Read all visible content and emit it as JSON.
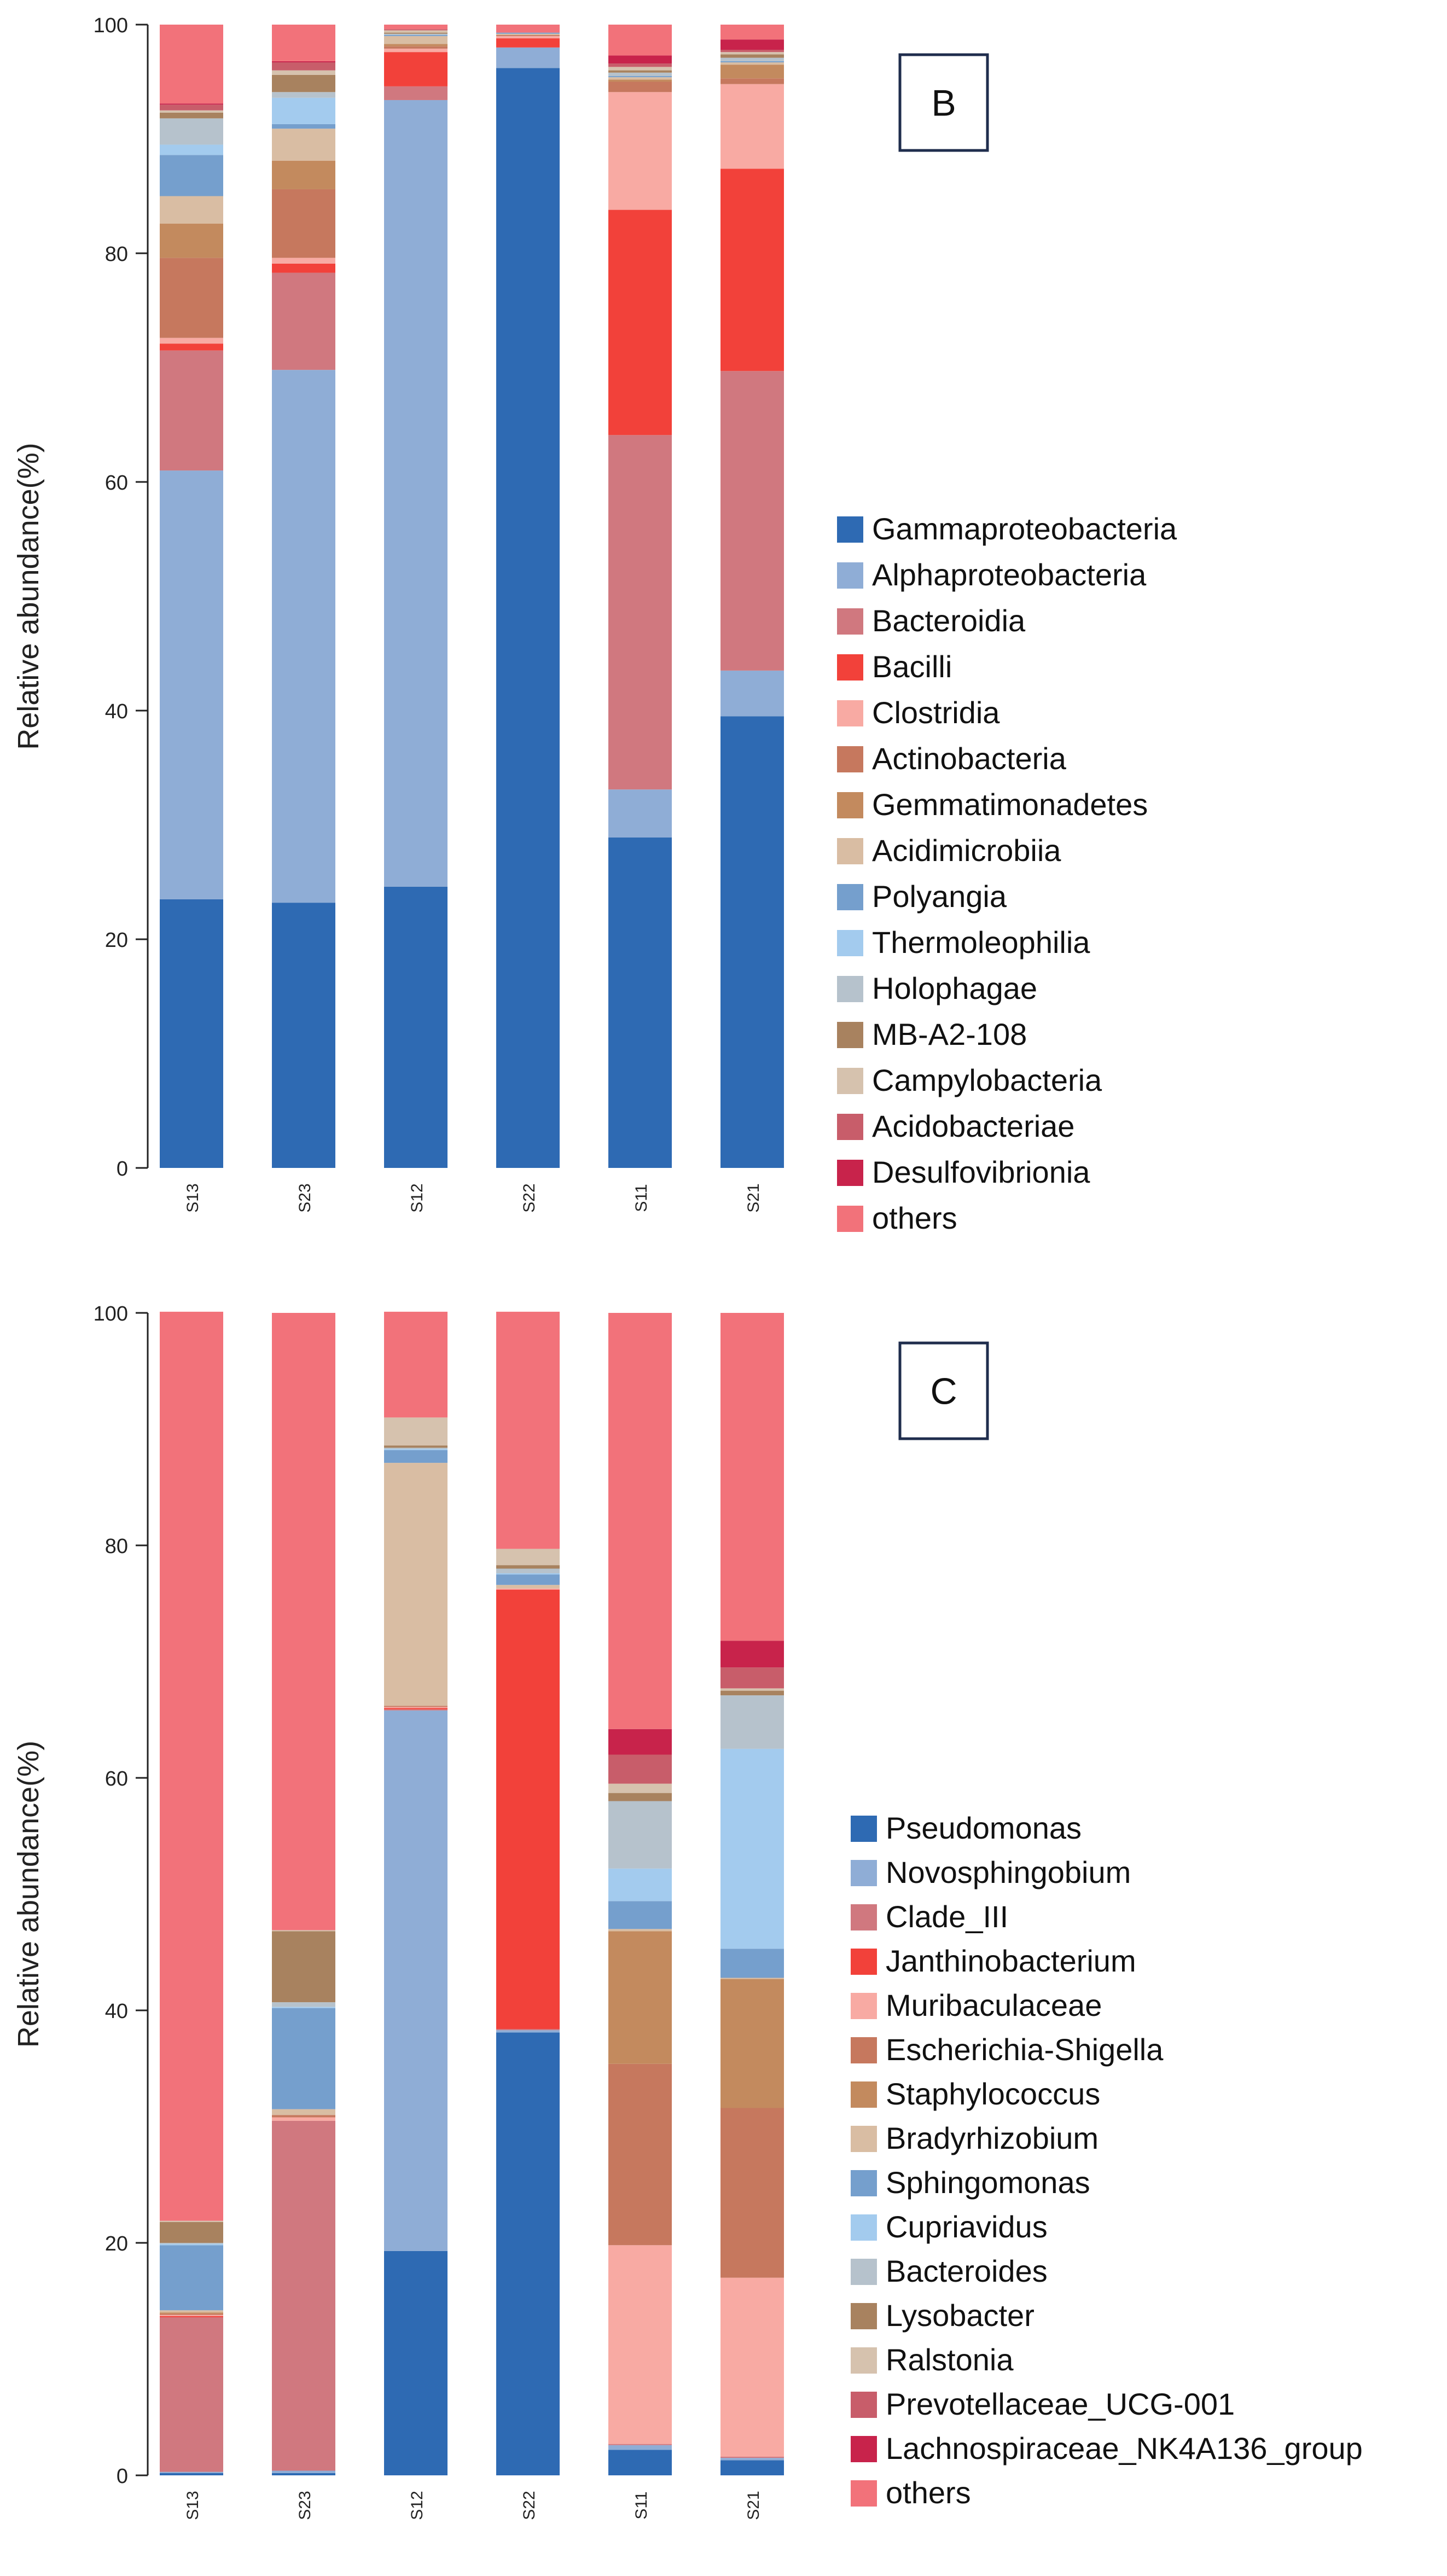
{
  "chart_data": [
    {
      "type": "bar",
      "stacked": true,
      "panel_label": "B",
      "ylabel": "Relative abundance(%)",
      "xlabel": "",
      "ylim": [
        0,
        100
      ],
      "yticks": [
        0,
        20,
        40,
        60,
        80,
        100
      ],
      "categories": [
        "S13",
        "S23",
        "S12",
        "S22",
        "S11",
        "S21"
      ],
      "legend_position": "right",
      "series": [
        {
          "name": "Gammaproteobacteria",
          "color": "#2E6AB3",
          "values": [
            23.5,
            23.2,
            24.6,
            96.2,
            28.9,
            39.5
          ]
        },
        {
          "name": "Alphaproteobacteria",
          "color": "#8FADD6",
          "values": [
            37.5,
            46.6,
            68.8,
            1.8,
            4.2,
            4.0
          ]
        },
        {
          "name": "Bacteroidia",
          "color": "#D0787F",
          "values": [
            10.5,
            8.5,
            1.2,
            0.0,
            31.0,
            26.2
          ]
        },
        {
          "name": "Bacilli",
          "color": "#F2413A",
          "values": [
            0.6,
            0.8,
            3.0,
            0.8,
            19.7,
            17.7
          ]
        },
        {
          "name": "Clostridia",
          "color": "#F8AAA3",
          "values": [
            0.5,
            0.5,
            0.3,
            0.2,
            10.3,
            7.4
          ]
        },
        {
          "name": "Actinobacteria",
          "color": "#C6785E",
          "values": [
            7.0,
            6.0,
            0.2,
            0.1,
            0.9,
            0.5
          ]
        },
        {
          "name": "Gemmatimonadetes",
          "color": "#C38A5E",
          "values": [
            3.0,
            2.5,
            0.2,
            0.0,
            0.2,
            1.2
          ]
        },
        {
          "name": "Acidimicrobiia",
          "color": "#D9BDA3",
          "values": [
            2.4,
            2.8,
            0.7,
            0.1,
            0.2,
            0.2
          ]
        },
        {
          "name": "Polyangia",
          "color": "#759FCD",
          "values": [
            3.6,
            0.4,
            0.1,
            0.1,
            0.1,
            0.1
          ]
        },
        {
          "name": "Thermoleophilia",
          "color": "#A3CBEE",
          "values": [
            0.9,
            2.3,
            0.0,
            0.0,
            0.0,
            0.0
          ]
        },
        {
          "name": "Holophagae",
          "color": "#B6C2CC",
          "values": [
            2.3,
            0.5,
            0.1,
            0.0,
            0.3,
            0.3
          ]
        },
        {
          "name": "MB-A2-108",
          "color": "#A8825F",
          "values": [
            0.5,
            1.5,
            0.1,
            0.0,
            0.2,
            0.3
          ]
        },
        {
          "name": "Campylobacteria",
          "color": "#D6C2AE",
          "values": [
            0.2,
            0.4,
            0.2,
            0.0,
            0.3,
            0.2
          ]
        },
        {
          "name": "Acidobacteriae",
          "color": "#C85D6A",
          "values": [
            0.5,
            0.7,
            0.1,
            0.0,
            0.3,
            0.2
          ]
        },
        {
          "name": "Desulfovibrionia",
          "color": "#C8234B",
          "values": [
            0.1,
            0.1,
            0.0,
            0.0,
            0.7,
            0.9
          ]
        },
        {
          "name": "others",
          "color": "#F2727A",
          "values": [
            6.9,
            3.2,
            0.4,
            0.7,
            2.7,
            1.3
          ]
        }
      ]
    },
    {
      "type": "bar",
      "stacked": true,
      "panel_label": "C",
      "ylabel": "Relative abundance(%)",
      "xlabel": "",
      "ylim": [
        0,
        100
      ],
      "yticks": [
        0,
        20,
        40,
        60,
        80,
        100
      ],
      "categories": [
        "S13",
        "S23",
        "S12",
        "S22",
        "S11",
        "S21"
      ],
      "legend_position": "right",
      "series": [
        {
          "name": "Pseudomonas",
          "color": "#2E6AB3",
          "values": [
            0.2,
            0.2,
            19.3,
            38.1,
            2.2,
            1.3
          ]
        },
        {
          "name": "Novosphingobium",
          "color": "#8FADD6",
          "values": [
            0.1,
            0.2,
            46.5,
            0.2,
            0.4,
            0.2
          ]
        },
        {
          "name": "Clade_III",
          "color": "#D0787F",
          "values": [
            13.3,
            30.1,
            0.1,
            0.1,
            0.1,
            0.1
          ]
        },
        {
          "name": "Janthinobacterium",
          "color": "#F2413A",
          "values": [
            0.1,
            0.0,
            0.1,
            37.8,
            0.0,
            0.0
          ]
        },
        {
          "name": "Muribaculaceae",
          "color": "#F8AAA3",
          "values": [
            0.1,
            0.3,
            0.1,
            0.1,
            17.1,
            15.4
          ]
        },
        {
          "name": "Escherichia-Shigella",
          "color": "#C6785E",
          "values": [
            0.1,
            0.2,
            0.1,
            0.0,
            15.6,
            14.6
          ]
        },
        {
          "name": "Staphylococcus",
          "color": "#C38A5E",
          "values": [
            0.1,
            0.0,
            0.0,
            0.0,
            11.4,
            11.1
          ]
        },
        {
          "name": "Bradyrhizobium",
          "color": "#D9BDA3",
          "values": [
            0.2,
            0.5,
            20.9,
            0.3,
            0.2,
            0.1
          ]
        },
        {
          "name": "Sphingomonas",
          "color": "#759FCD",
          "values": [
            5.6,
            8.7,
            1.1,
            0.9,
            2.4,
            2.5
          ]
        },
        {
          "name": "Cupriavidus",
          "color": "#A3CBEE",
          "values": [
            0.1,
            0.1,
            0.1,
            0.1,
            2.8,
            17.2
          ]
        },
        {
          "name": "Bacteroides",
          "color": "#B6C2CC",
          "values": [
            0.1,
            0.4,
            0.1,
            0.4,
            5.8,
            4.6
          ]
        },
        {
          "name": "Lysobacter",
          "color": "#A8825F",
          "values": [
            1.8,
            6.1,
            0.2,
            0.3,
            0.7,
            0.4
          ]
        },
        {
          "name": "Ralstonia",
          "color": "#D6C2AE",
          "values": [
            0.1,
            0.1,
            2.4,
            1.4,
            0.8,
            0.2
          ]
        },
        {
          "name": "Prevotellaceae_UCG-001",
          "color": "#C85D6A",
          "values": [
            0.0,
            0.0,
            0.0,
            0.0,
            2.5,
            1.8
          ]
        },
        {
          "name": "Lachnospiraceae_NK4A136_group",
          "color": "#C8234B",
          "values": [
            0.0,
            0.0,
            0.0,
            0.0,
            2.2,
            2.3
          ]
        },
        {
          "name": "others",
          "color": "#F2727A",
          "values": [
            78.2,
            53.1,
            9.1,
            20.4,
            35.8,
            28.2
          ]
        }
      ]
    }
  ]
}
